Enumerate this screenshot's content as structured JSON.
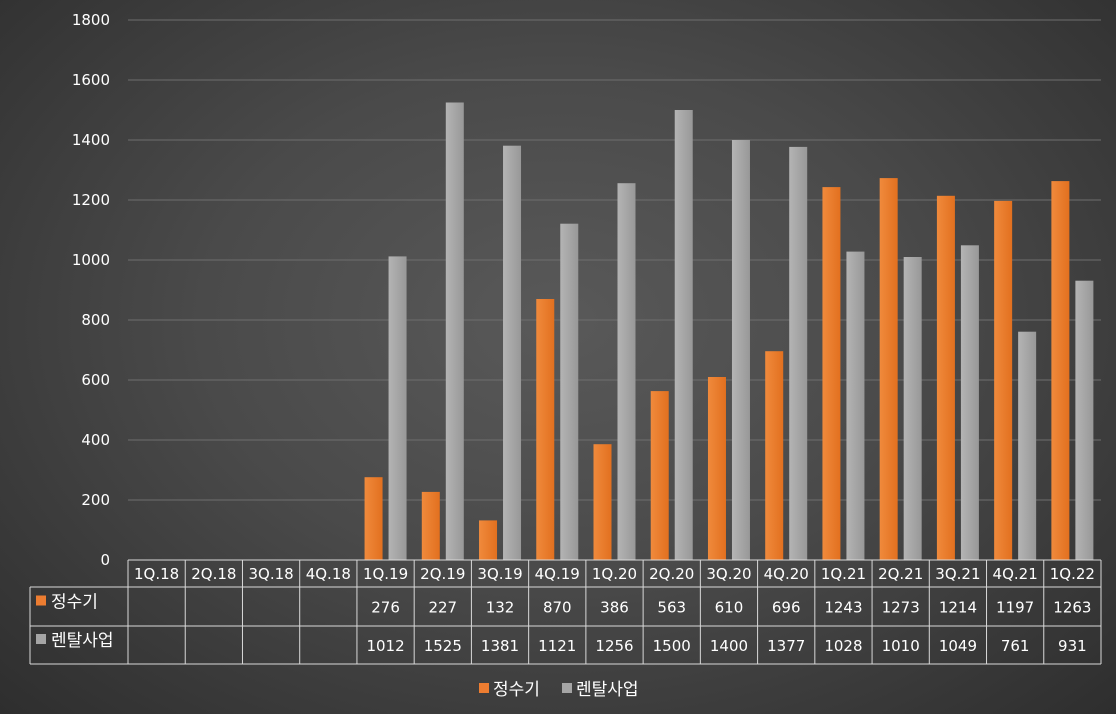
{
  "chart_data": {
    "type": "bar",
    "categories": [
      "1Q.18",
      "2Q.18",
      "3Q.18",
      "4Q.18",
      "1Q.19",
      "2Q.19",
      "3Q.19",
      "4Q.19",
      "1Q.20",
      "2Q.20",
      "3Q.20",
      "4Q.20",
      "1Q.21",
      "2Q.21",
      "3Q.21",
      "4Q.21",
      "1Q.22"
    ],
    "series": [
      {
        "name": "정수기",
        "color": "#ED7D31",
        "values": [
          null,
          null,
          null,
          null,
          276,
          227,
          132,
          870,
          386,
          563,
          610,
          696,
          1243,
          1273,
          1214,
          1197,
          1263
        ]
      },
      {
        "name": "렌탈사업",
        "color": "#A5A5A5",
        "values": [
          null,
          null,
          null,
          null,
          1012,
          1525,
          1381,
          1121,
          1256,
          1500,
          1400,
          1377,
          1028,
          1010,
          1049,
          761,
          931
        ]
      }
    ],
    "ylim": [
      0,
      1800
    ],
    "yticks": [
      0,
      200,
      400,
      600,
      800,
      1000,
      1200,
      1400,
      1600,
      1800
    ],
    "grid": true,
    "legend": "bottom",
    "data_table": true
  }
}
